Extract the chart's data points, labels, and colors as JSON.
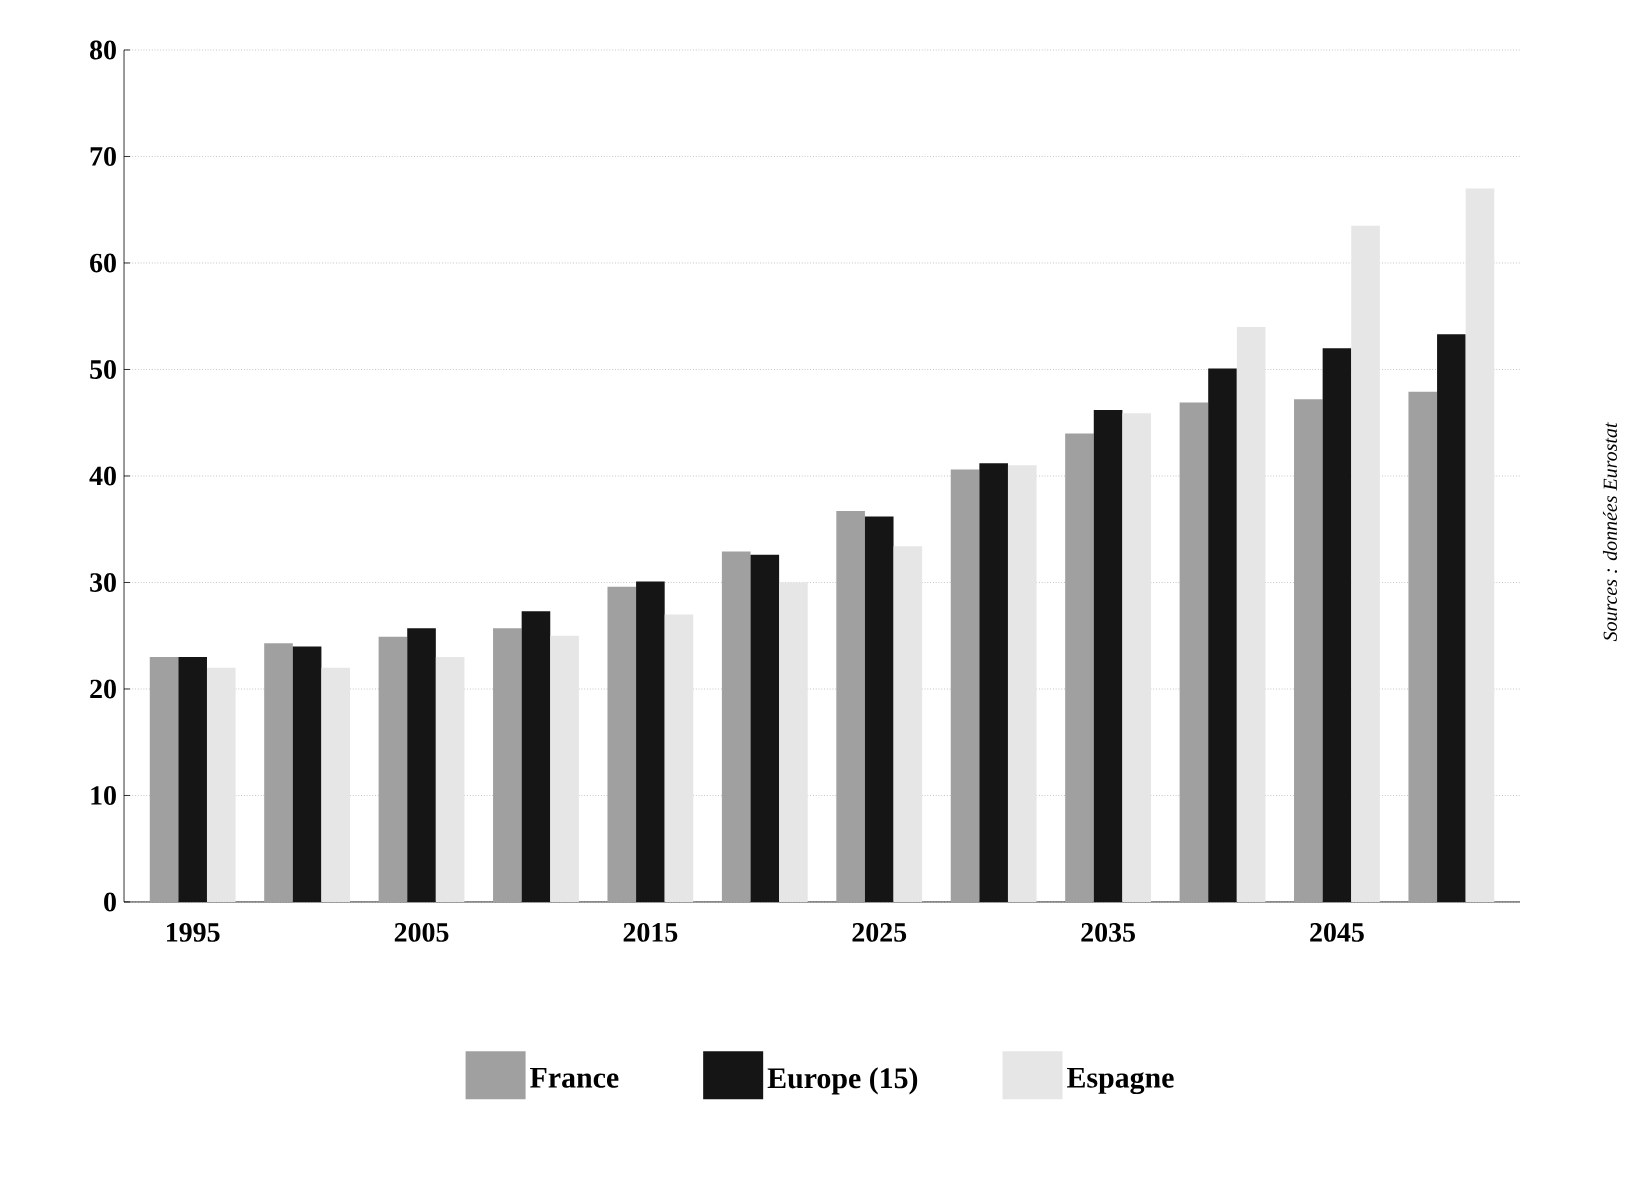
{
  "chart_data": {
    "type": "bar",
    "categories": [
      "1995",
      null,
      "2005",
      null,
      "2015",
      null,
      "2025",
      null,
      "2035",
      null,
      "2045",
      null
    ],
    "series": [
      {
        "name": "France",
        "color": "#a0a0a0",
        "values": [
          23,
          24.3,
          24.9,
          25.7,
          29.6,
          32.9,
          36.7,
          40.6,
          44.0,
          46.9,
          47.2,
          47.9
        ]
      },
      {
        "name": "Europe (15)",
        "color": "#151515",
        "values": [
          23,
          24.0,
          25.7,
          27.3,
          30.1,
          32.6,
          36.2,
          41.2,
          46.2,
          50.1,
          52.0,
          53.3
        ]
      },
      {
        "name": "Espagne",
        "color": "#e6e6e6",
        "values": [
          22,
          22,
          23,
          25,
          27,
          30,
          33.4,
          41,
          45.9,
          54,
          63.5,
          67
        ]
      }
    ],
    "ylim": [
      0,
      80
    ],
    "yticks": [
      0,
      10,
      20,
      30,
      40,
      50,
      60,
      70,
      80
    ],
    "grid": "y",
    "legend": "bottom",
    "annotations": [
      "Sources : données Eurostat"
    ]
  }
}
